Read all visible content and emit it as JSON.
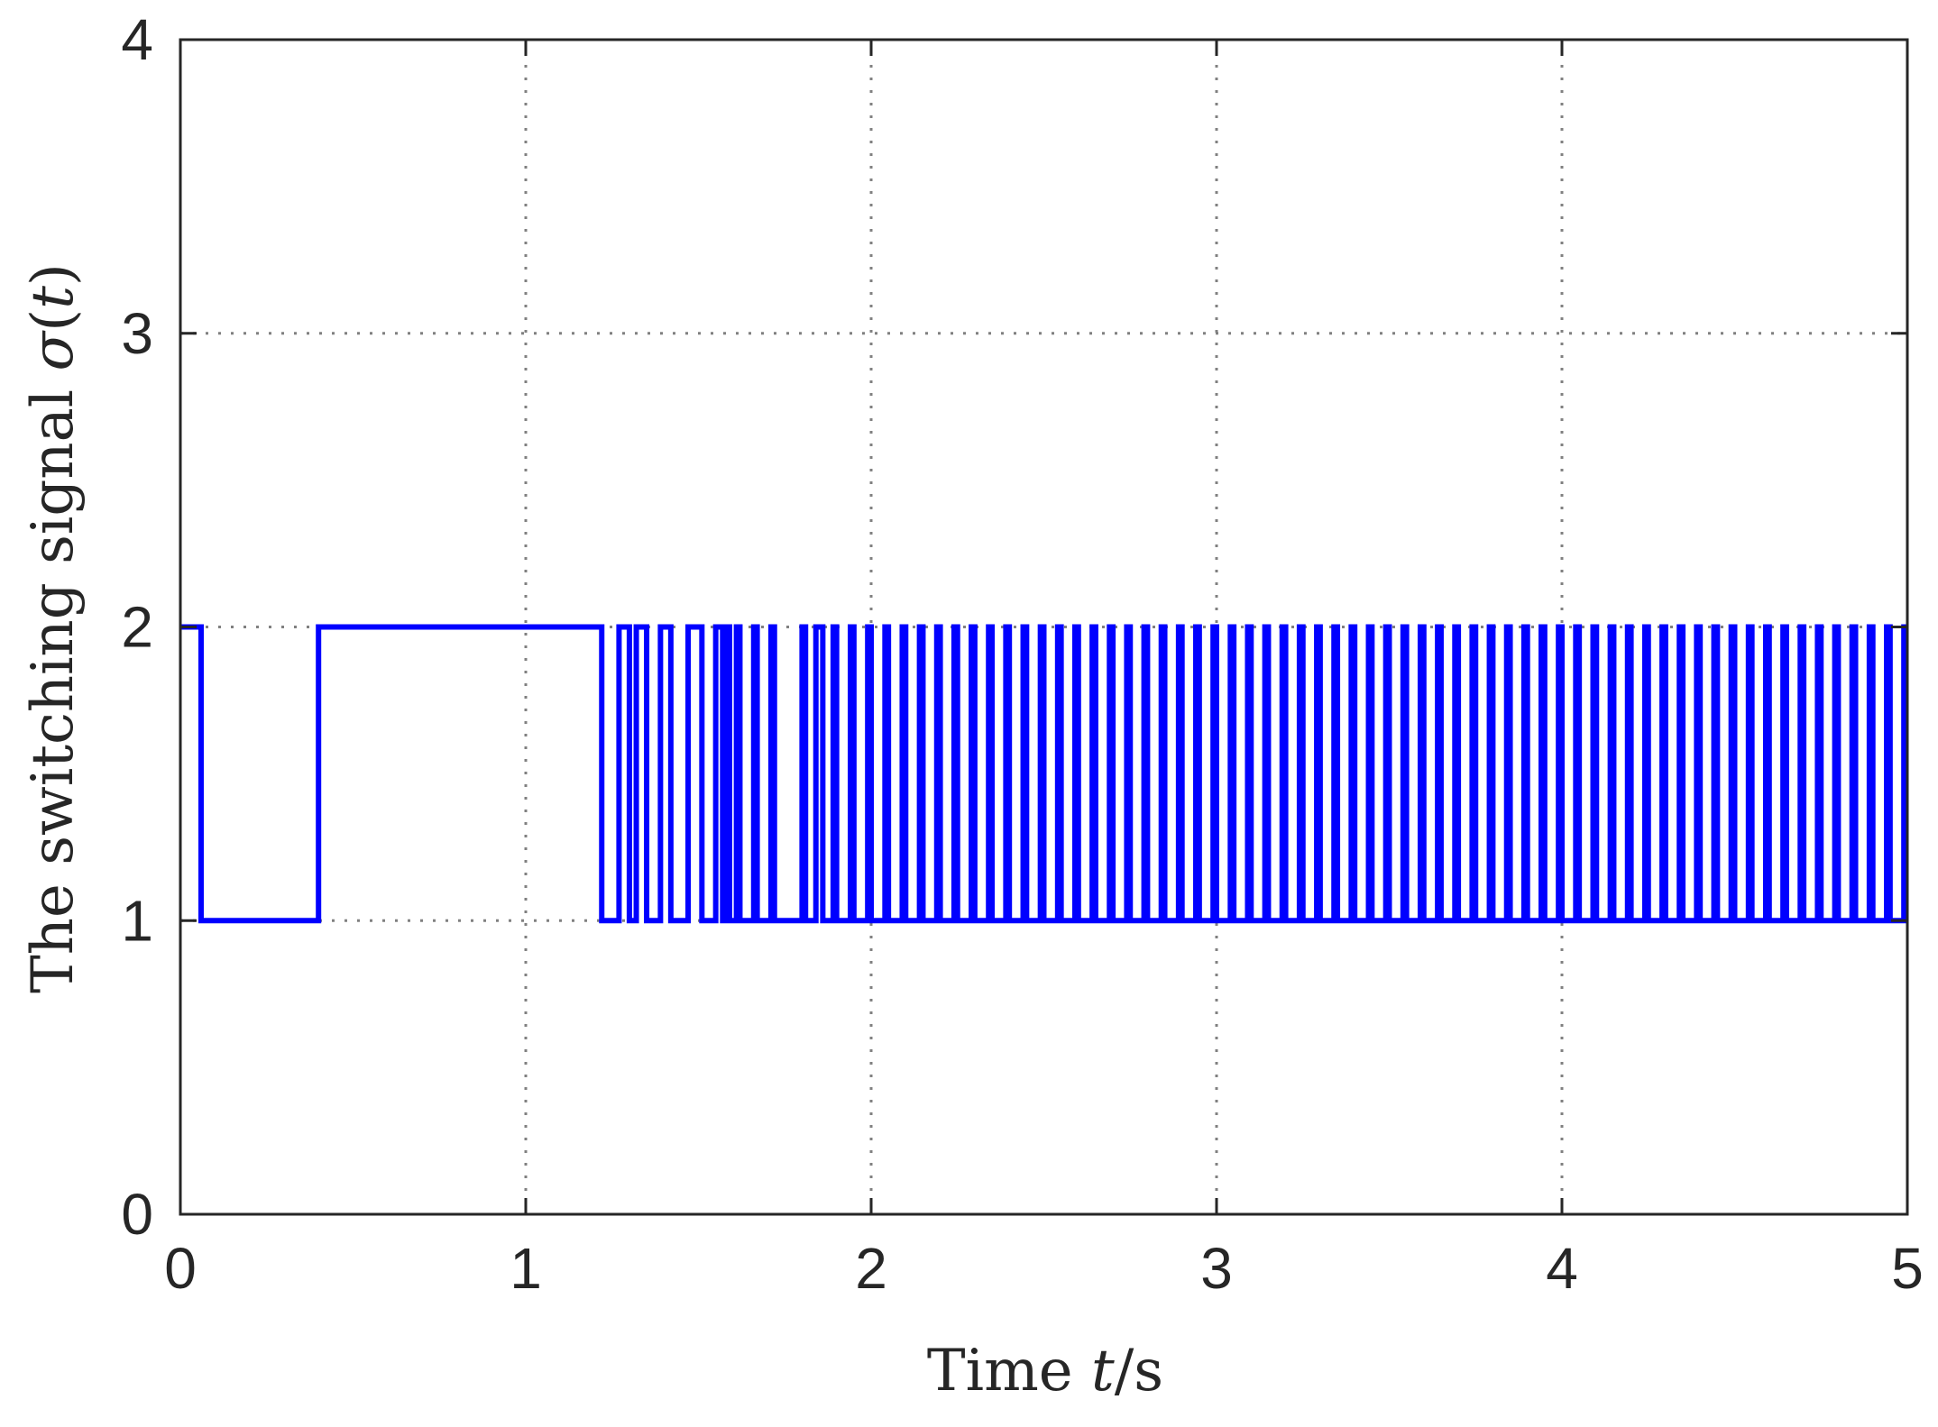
{
  "chart_data": {
    "type": "line",
    "step": true,
    "title": "",
    "xlabel_text": "Time ",
    "xlabel_var": "t",
    "xlabel_unit": "/s",
    "ylabel_text": "The switching signal ",
    "ylabel_var": "σ",
    "ylabel_paren_open": "(",
    "ylabel_arg": "t",
    "ylabel_paren_close": ")",
    "xlim": [
      0,
      5
    ],
    "ylim": [
      0,
      4
    ],
    "xticks": [
      "0",
      "1",
      "2",
      "3",
      "4",
      "5"
    ],
    "yticks": [
      "0",
      "1",
      "2",
      "3",
      "4"
    ],
    "grid": true,
    "grid_style": "dotted",
    "legend": "none",
    "line_color": "#0000ff",
    "series": [
      {
        "initial_value": 2,
        "switch_times": [
          0.06,
          0.4,
          1.22,
          1.27,
          1.3,
          1.32,
          1.35,
          1.39,
          1.42,
          1.47,
          1.51,
          1.55,
          1.57,
          1.58,
          1.59,
          1.61,
          1.62,
          1.66,
          1.67,
          1.71,
          1.72,
          1.8,
          1.81,
          1.84,
          1.86,
          1.89,
          1.9,
          1.94,
          1.95,
          1.99,
          2.0,
          2.04,
          2.05,
          2.09,
          2.1,
          2.14,
          2.15,
          2.19,
          2.2,
          2.24,
          2.25,
          2.29,
          2.3,
          2.34,
          2.35,
          2.39,
          2.4,
          2.44,
          2.45,
          2.49,
          2.5,
          2.54,
          2.55,
          2.59,
          2.6,
          2.64,
          2.65,
          2.69,
          2.7,
          2.74,
          2.75,
          2.79,
          2.8,
          2.84,
          2.85,
          2.89,
          2.9,
          2.94,
          2.95,
          2.99,
          3.0,
          3.04,
          3.05,
          3.09,
          3.1,
          3.14,
          3.15,
          3.19,
          3.2,
          3.24,
          3.25,
          3.29,
          3.3,
          3.34,
          3.35,
          3.39,
          3.4,
          3.44,
          3.45,
          3.49,
          3.5,
          3.54,
          3.55,
          3.59,
          3.6,
          3.64,
          3.65,
          3.69,
          3.7,
          3.74,
          3.75,
          3.79,
          3.8,
          3.84,
          3.85,
          3.89,
          3.9,
          3.94,
          3.95,
          3.99,
          4.0,
          4.04,
          4.05,
          4.09,
          4.1,
          4.14,
          4.15,
          4.19,
          4.2,
          4.24,
          4.25,
          4.29,
          4.3,
          4.34,
          4.35,
          4.39,
          4.4,
          4.44,
          4.45,
          4.49,
          4.5,
          4.54,
          4.55,
          4.59,
          4.6,
          4.64,
          4.65,
          4.69,
          4.7,
          4.74,
          4.75,
          4.79,
          4.8,
          4.84,
          4.85,
          4.89,
          4.9,
          4.94,
          4.95,
          4.99
        ],
        "levels": [
          1,
          2
        ]
      }
    ]
  }
}
